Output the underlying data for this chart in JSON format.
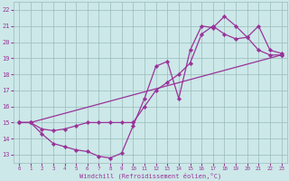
{
  "xlabel": "Windchill (Refroidissement éolien,°C)",
  "bg_color": "#cce8e8",
  "grid_color": "#99bbbb",
  "line_color": "#993399",
  "xlim": [
    -0.5,
    23.5
  ],
  "ylim": [
    12.5,
    22.5
  ],
  "xticks": [
    0,
    1,
    2,
    3,
    4,
    5,
    6,
    7,
    8,
    9,
    10,
    11,
    12,
    13,
    14,
    15,
    16,
    17,
    18,
    19,
    20,
    21,
    22,
    23
  ],
  "yticks": [
    13,
    14,
    15,
    16,
    17,
    18,
    19,
    20,
    21,
    22
  ],
  "line1_x": [
    0,
    1,
    2,
    3,
    4,
    5,
    6,
    7,
    8,
    9,
    10,
    11,
    12,
    13,
    14,
    15,
    16,
    17,
    18,
    19,
    20,
    21,
    22,
    23
  ],
  "line1_y": [
    15.0,
    15.0,
    14.3,
    13.7,
    13.5,
    13.3,
    13.2,
    12.9,
    12.8,
    13.1,
    14.8,
    16.5,
    18.5,
    18.8,
    16.5,
    19.5,
    21.0,
    20.9,
    21.6,
    21.0,
    20.3,
    19.5,
    19.2,
    19.2
  ],
  "line2_x": [
    0,
    1,
    2,
    3,
    4,
    5,
    6,
    7,
    8,
    9,
    10,
    11,
    12,
    13,
    14,
    15,
    16,
    17,
    18,
    19,
    20,
    21,
    22,
    23
  ],
  "line2_y": [
    15.0,
    15.0,
    14.6,
    14.5,
    14.6,
    14.8,
    15.0,
    15.0,
    15.0,
    15.0,
    15.0,
    16.0,
    17.0,
    17.5,
    18.0,
    18.7,
    20.5,
    21.0,
    20.5,
    20.2,
    20.3,
    21.0,
    19.5,
    19.3
  ],
  "line3_x": [
    0,
    1,
    23
  ],
  "line3_y": [
    15.0,
    15.0,
    19.2
  ]
}
